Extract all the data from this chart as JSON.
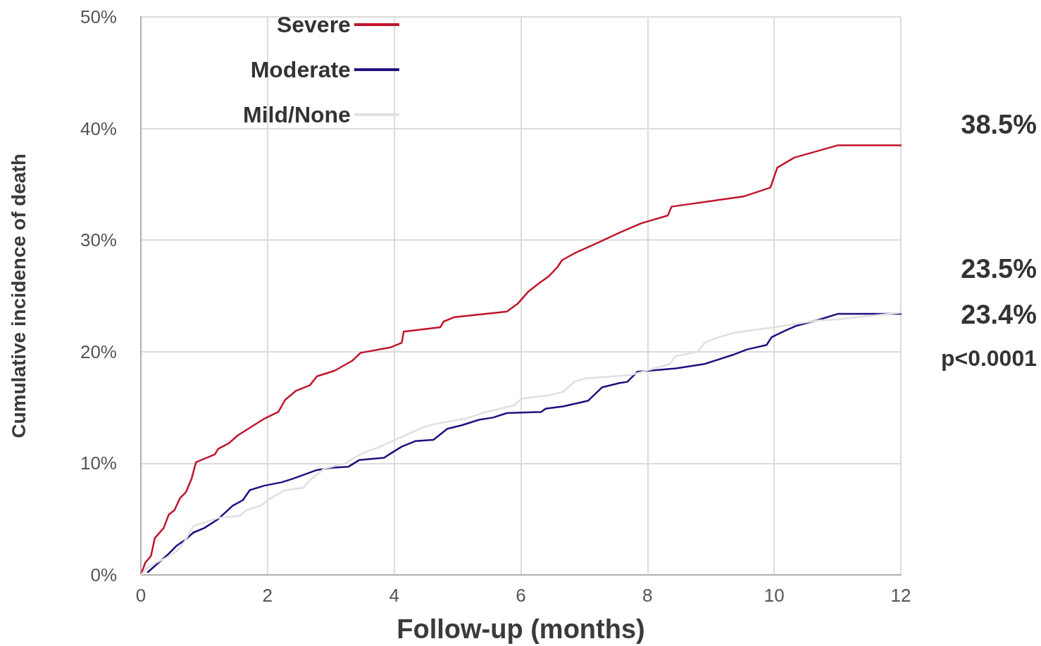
{
  "chart_data": {
    "type": "line",
    "xlabel": "Follow-up (months)",
    "ylabel": "Cumulative incidence of death",
    "xlim": [
      0,
      12
    ],
    "xticks": [
      0,
      2,
      4,
      6,
      8,
      10,
      12
    ],
    "ylim": [
      0,
      50
    ],
    "yticks": [
      {
        "value": 0,
        "label": "0%"
      },
      {
        "value": 10,
        "label": "10%"
      },
      {
        "value": 20,
        "label": "20%"
      },
      {
        "value": 30,
        "label": "30%"
      },
      {
        "value": 40,
        "label": "40%"
      },
      {
        "value": 50,
        "label": "50%"
      }
    ],
    "grid": true,
    "legend": "top left",
    "marker": "none",
    "line_style": "solid",
    "annotations": [
      "38.5%",
      "23.5%",
      "23.4%",
      "p<0.0001"
    ],
    "series": [
      {
        "name": "Severe",
        "color": "#c0142c",
        "x": [
          0,
          0.07,
          0.16,
          0.22,
          0.36,
          0.44,
          0.53,
          0.62,
          0.71,
          0.8,
          0.87,
          1.17,
          1.22,
          1.39,
          1.53,
          1.78,
          1.95,
          2.17,
          2.28,
          2.45,
          2.67,
          2.78,
          3.06,
          3.34,
          3.47,
          3.95,
          4.12,
          4.15,
          4.73,
          4.78,
          4.95,
          5.78,
          5.95,
          6.12,
          6.28,
          6.45,
          6.58,
          6.65,
          6.84,
          7.23,
          7.57,
          7.9,
          8.32,
          8.38,
          9.51,
          9.94,
          10.05,
          10.32,
          11.01,
          12
        ],
        "values": [
          0,
          1.1,
          1.7,
          3.3,
          4.2,
          5.4,
          5.8,
          6.9,
          7.4,
          8.6,
          10.1,
          10.8,
          11.3,
          11.8,
          12.5,
          13.4,
          14.0,
          14.6,
          15.7,
          16.5,
          17.0,
          17.8,
          18.3,
          19.2,
          19.9,
          20.4,
          20.8,
          21.8,
          22.2,
          22.7,
          23.1,
          23.6,
          24.3,
          25.4,
          26.1,
          26.8,
          27.6,
          28.2,
          28.8,
          29.8,
          30.7,
          31.5,
          32.2,
          33.0,
          33.9,
          34.7,
          36.5,
          37.4,
          38.5,
          38.5
        ]
      },
      {
        "name": "Moderate",
        "color": "#1f0f80",
        "x": [
          0.11,
          0.24,
          0.36,
          0.44,
          0.56,
          0.69,
          0.83,
          1.0,
          1.22,
          1.45,
          1.61,
          1.72,
          1.95,
          2.22,
          2.39,
          2.78,
          3.0,
          3.28,
          3.45,
          3.84,
          3.95,
          4.12,
          4.34,
          4.62,
          4.84,
          5.06,
          5.34,
          5.56,
          5.78,
          6.32,
          6.39,
          6.67,
          7.06,
          7.28,
          7.56,
          7.68,
          7.84,
          8.45,
          8.9,
          9.34,
          9.57,
          9.88,
          9.96,
          10.18,
          10.34,
          10.73,
          11.01,
          12
        ],
        "values": [
          0.25,
          0.9,
          1.5,
          1.9,
          2.6,
          3.1,
          3.8,
          4.2,
          5.0,
          6.2,
          6.7,
          7.6,
          8.0,
          8.3,
          8.6,
          9.4,
          9.6,
          9.7,
          10.3,
          10.5,
          10.9,
          11.5,
          12.0,
          12.1,
          13.1,
          13.4,
          13.9,
          14.1,
          14.5,
          14.6,
          14.9,
          15.1,
          15.6,
          16.8,
          17.2,
          17.3,
          18.2,
          18.5,
          18.9,
          19.7,
          20.2,
          20.6,
          21.3,
          21.9,
          22.3,
          22.9,
          23.4,
          23.4
        ]
      },
      {
        "name": "Mild/None",
        "color": "#e0e0e0",
        "x": [
          0,
          0.09,
          0.24,
          0.39,
          0.56,
          0.69,
          0.83,
          1.22,
          1.56,
          1.67,
          1.89,
          2.06,
          2.28,
          2.56,
          2.67,
          2.89,
          3.22,
          3.5,
          3.78,
          4.17,
          4.45,
          4.62,
          5.12,
          5.45,
          5.9,
          6.01,
          6.45,
          6.67,
          6.84,
          7.01,
          7.73,
          8.35,
          8.44,
          8.8,
          8.9,
          9.12,
          9.37,
          10.01,
          10.68,
          11.01,
          12
        ],
        "values": [
          0,
          0.6,
          1.1,
          1.5,
          2.1,
          3.0,
          4.4,
          5.1,
          5.3,
          5.8,
          6.2,
          6.9,
          7.6,
          7.8,
          8.5,
          9.5,
          10.0,
          10.9,
          11.5,
          12.5,
          13.2,
          13.5,
          14.0,
          14.6,
          15.2,
          15.8,
          16.1,
          16.4,
          17.3,
          17.6,
          17.9,
          18.9,
          19.6,
          20.0,
          20.8,
          21.3,
          21.7,
          22.2,
          22.8,
          22.9,
          23.5
        ]
      }
    ]
  }
}
